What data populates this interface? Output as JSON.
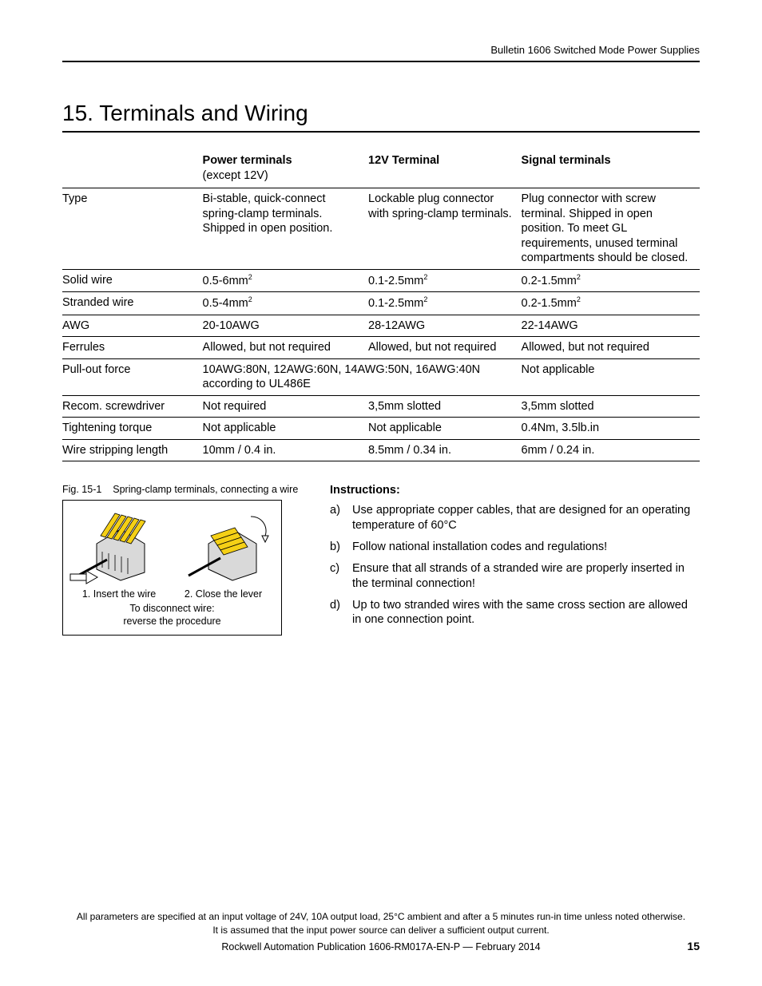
{
  "header": {
    "running": "Bulletin 1606 Switched Mode Power Supplies"
  },
  "section": {
    "number": "15.",
    "title": "Terminals and Wiring"
  },
  "table": {
    "columns": [
      {
        "label": "",
        "sub": ""
      },
      {
        "label": "Power terminals",
        "sub": "(except 12V)"
      },
      {
        "label": "12V Terminal",
        "sub": ""
      },
      {
        "label": "Signal terminals",
        "sub": ""
      }
    ],
    "rows": [
      {
        "label": "Type",
        "c1": "Bi-stable, quick-connect spring-clamp terminals. Shipped in open position.",
        "c2": "Lockable plug connector with spring-clamp terminals.",
        "c3": "Plug connector with screw terminal. Shipped in open position. To meet GL requirements, unused terminal compartments should be closed."
      },
      {
        "label": "Solid wire",
        "c1": "0.5-6mm²",
        "c2": "0.1-2.5mm²",
        "c3": "0.2-1.5mm²"
      },
      {
        "label": "Stranded wire",
        "c1": "0.5-4mm²",
        "c2": "0.1-2.5mm²",
        "c3": "0.2-1.5mm²"
      },
      {
        "label": "AWG",
        "c1": "20-10AWG",
        "c2": "28-12AWG",
        "c3": "22-14AWG"
      },
      {
        "label": "Ferrules",
        "c1": "Allowed, but not required",
        "c2": "Allowed, but not required",
        "c3": "Allowed, but not required"
      },
      {
        "label": "Pull-out force",
        "c12": "10AWG:80N, 12AWG:60N, 14AWG:50N, 16AWG:40N according to UL486E",
        "c3": "Not applicable"
      },
      {
        "label": "Recom. screwdriver",
        "c1": "Not required",
        "c2": "3,5mm slotted",
        "c3": "3,5mm slotted"
      },
      {
        "label": "Tightening torque",
        "c1": "Not applicable",
        "c2": "Not applicable",
        "c3": "0.4Nm, 3.5lb.in"
      },
      {
        "label": "Wire stripping length",
        "c1": "10mm / 0.4 in.",
        "c2": "8.5mm / 0.34 in.",
        "c3": "6mm / 0.24 in."
      }
    ]
  },
  "figure": {
    "caption_prefix": "Fig. 15-1",
    "caption": "Spring-clamp terminals, connecting a wire",
    "step1": "1.  Insert the wire",
    "step2": "2.  Close the lever",
    "sub1": "To disconnect wire:",
    "sub2": "reverse the procedure",
    "colors": {
      "lever": "#f5d016",
      "body": "#d9d9d9",
      "outline": "#000000",
      "arrow_fill": "#ffffff"
    }
  },
  "instructions": {
    "title": "Instructions:",
    "items": [
      {
        "m": "a)",
        "t": "Use appropriate copper cables, that are designed for an operating temperature of 60°C"
      },
      {
        "m": "b)",
        "t": "Follow national installation codes and regulations!"
      },
      {
        "m": "c)",
        "t": "Ensure that all strands of a stranded wire are properly inserted in the terminal connection!"
      },
      {
        "m": "d)",
        "t": "Up to two stranded wires with the same cross section are allowed in one connection point."
      }
    ]
  },
  "footer": {
    "line1": "All parameters are specified at an input voltage of 24V, 10A output load, 25°C ambient and after a 5 minutes run-in time unless noted otherwise.",
    "line2": "It is assumed that the input power source can deliver a sufficient output current.",
    "pub": "Rockwell Automation Publication 1606-RM017A-EN-P — February 2014",
    "page": "15"
  }
}
